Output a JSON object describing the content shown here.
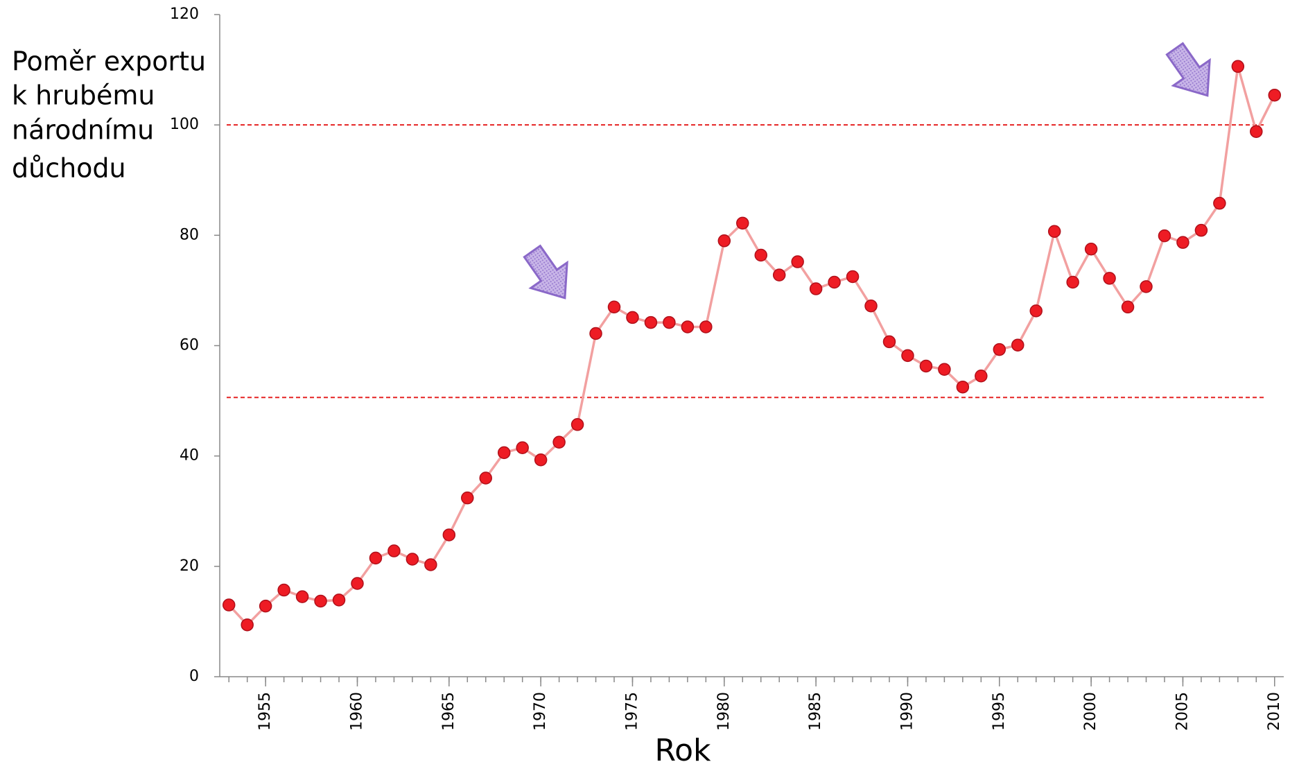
{
  "chart_data": {
    "type": "line",
    "ylabel": [
      "Poměr exportu",
      "k hrubému",
      "národnímu",
      "důchodu"
    ],
    "xlabel": "Rok",
    "x": [
      1953,
      1954,
      1955,
      1956,
      1957,
      1958,
      1959,
      1960,
      1961,
      1962,
      1963,
      1964,
      1965,
      1966,
      1967,
      1968,
      1969,
      1970,
      1971,
      1972,
      1973,
      1974,
      1975,
      1976,
      1977,
      1978,
      1979,
      1980,
      1981,
      1982,
      1983,
      1984,
      1985,
      1986,
      1987,
      1988,
      1989,
      1990,
      1991,
      1992,
      1993,
      1994,
      1995,
      1996,
      1997,
      1998,
      1999,
      2000,
      2001,
      2002,
      2003,
      2004,
      2005,
      2006,
      2007,
      2008,
      2009,
      2010
    ],
    "series": [
      {
        "color": "#f2a0a0",
        "marker_color": "#ee1c24",
        "values": [
          13.0,
          9.4,
          12.8,
          15.7,
          14.5,
          13.7,
          13.9,
          16.9,
          21.5,
          22.8,
          21.3,
          20.3,
          25.7,
          32.4,
          36.0,
          40.6,
          41.5,
          39.3,
          42.5,
          45.7,
          62.2,
          67.0,
          65.1,
          64.2,
          64.2,
          63.4,
          63.4,
          79.0,
          82.2,
          76.4,
          72.8,
          75.2,
          70.3,
          71.5,
          72.5,
          67.2,
          60.7,
          58.2,
          56.3,
          55.7,
          52.5,
          54.5,
          59.3,
          60.1,
          66.3,
          80.7,
          71.5,
          77.5,
          72.2,
          67.0,
          70.7,
          79.9,
          78.7,
          80.9,
          85.8,
          110.6,
          98.8,
          105.4
        ]
      }
    ],
    "xlim": [
      1952.5,
      2010.5
    ],
    "xticks": [
      1955,
      1960,
      1965,
      1970,
      1975,
      1980,
      1985,
      1990,
      1995,
      2000,
      2005,
      2010
    ],
    "xminor_ticks": [
      1953,
      1954,
      1955,
      1956,
      1957,
      1958,
      1959,
      1960,
      1961,
      1962,
      1963,
      1964,
      1965,
      1966,
      1967,
      1968,
      1969,
      1970,
      1971,
      1972,
      1973,
      1974,
      1975,
      1976,
      1977,
      1978,
      1979,
      1980,
      1981,
      1982,
      1983,
      1984,
      1985,
      1986,
      1987,
      1988,
      1989,
      1990,
      1991,
      1992,
      1993,
      1994,
      1995,
      1996,
      1997,
      1998,
      1999,
      2000,
      2001,
      2002,
      2003,
      2004,
      2005,
      2006,
      2007,
      2008,
      2009,
      2010
    ],
    "ylim": [
      0,
      120
    ],
    "yticks": [
      0,
      20,
      40,
      60,
      80,
      100,
      120
    ],
    "reference_lines": [
      {
        "value": 100,
        "color": "#e52222"
      },
      {
        "value": 50.6,
        "color": "#e52222"
      }
    ],
    "grid": false
  }
}
